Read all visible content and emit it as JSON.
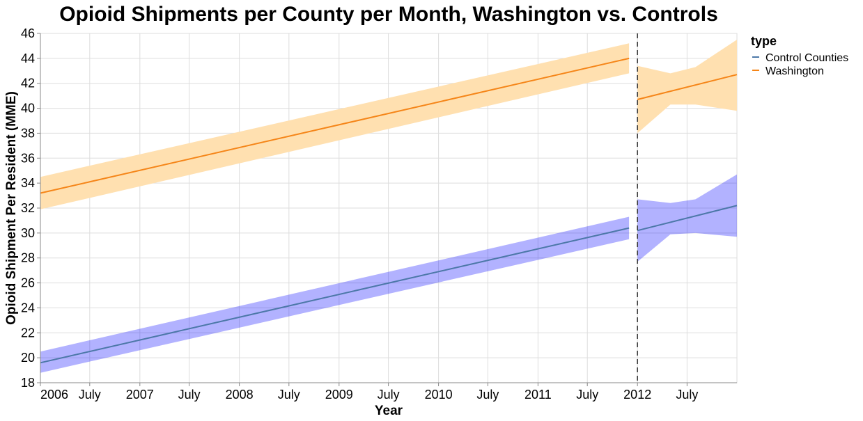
{
  "chart_data": {
    "type": "line",
    "title": "Opioid Shipments per County per Month, Washington vs. Controls",
    "xlabel": "Year",
    "ylabel": "Opioid Shipment Per Resident (MME)",
    "xlim": [
      "2006-01-01",
      "2012-12-31"
    ],
    "ylim": [
      18,
      46
    ],
    "y_ticks": [
      18,
      20,
      22,
      24,
      26,
      28,
      30,
      32,
      34,
      36,
      38,
      40,
      42,
      44,
      46
    ],
    "x_ticks": [
      {
        "date": "2006-01-01",
        "label": "2006"
      },
      {
        "date": "2006-07-01",
        "label": "July"
      },
      {
        "date": "2007-01-01",
        "label": "2007"
      },
      {
        "date": "2007-07-01",
        "label": "July"
      },
      {
        "date": "2008-01-01",
        "label": "2008"
      },
      {
        "date": "2008-07-01",
        "label": "July"
      },
      {
        "date": "2009-01-01",
        "label": "2009"
      },
      {
        "date": "2009-07-01",
        "label": "July"
      },
      {
        "date": "2010-01-01",
        "label": "2010"
      },
      {
        "date": "2010-07-01",
        "label": "July"
      },
      {
        "date": "2011-01-01",
        "label": "2011"
      },
      {
        "date": "2011-07-01",
        "label": "July"
      },
      {
        "date": "2012-01-01",
        "label": "2012"
      },
      {
        "date": "2012-07-01",
        "label": "July"
      }
    ],
    "grid": true,
    "policy_line": "2012-01-01",
    "legend": {
      "title": "type",
      "position": "top-right"
    },
    "series": [
      {
        "name": "Control Counties",
        "color": "#4c78a8",
        "band_color": "#0000ff",
        "segments": [
          {
            "line": [
              [
                "2006-01-01",
                19.6
              ],
              [
                "2011-12-01",
                30.4
              ]
            ],
            "band_upper": [
              [
                "2006-01-01",
                20.5
              ],
              [
                "2011-12-01",
                31.3
              ]
            ],
            "band_lower": [
              [
                "2006-01-01",
                18.8
              ],
              [
                "2011-12-01",
                29.5
              ]
            ]
          },
          {
            "line": [
              [
                "2012-01-01",
                30.2
              ],
              [
                "2012-12-31",
                32.2
              ]
            ],
            "band_upper": [
              [
                "2012-01-01",
                32.7
              ],
              [
                "2012-05-01",
                32.4
              ],
              [
                "2012-08-01",
                32.7
              ],
              [
                "2012-12-31",
                34.7
              ]
            ],
            "band_lower": [
              [
                "2012-01-01",
                27.7
              ],
              [
                "2012-05-01",
                29.9
              ],
              [
                "2012-08-01",
                30.0
              ],
              [
                "2012-12-31",
                29.7
              ]
            ]
          }
        ]
      },
      {
        "name": "Washington",
        "color": "#f58518",
        "band_color": "#ffe0b0",
        "segments": [
          {
            "line": [
              [
                "2006-01-01",
                33.2
              ],
              [
                "2011-12-01",
                44.0
              ]
            ],
            "band_upper": [
              [
                "2006-01-01",
                34.5
              ],
              [
                "2011-12-01",
                45.2
              ]
            ],
            "band_lower": [
              [
                "2006-01-01",
                31.9
              ],
              [
                "2011-12-01",
                42.8
              ]
            ]
          },
          {
            "line": [
              [
                "2012-01-01",
                40.7
              ],
              [
                "2012-12-31",
                42.7
              ]
            ],
            "band_upper": [
              [
                "2012-01-01",
                43.4
              ],
              [
                "2012-05-01",
                42.8
              ],
              [
                "2012-08-01",
                43.3
              ],
              [
                "2012-12-31",
                45.5
              ]
            ],
            "band_lower": [
              [
                "2012-01-01",
                38.0
              ],
              [
                "2012-05-01",
                40.3
              ],
              [
                "2012-08-01",
                40.3
              ],
              [
                "2012-12-31",
                39.8
              ]
            ]
          }
        ]
      }
    ]
  }
}
